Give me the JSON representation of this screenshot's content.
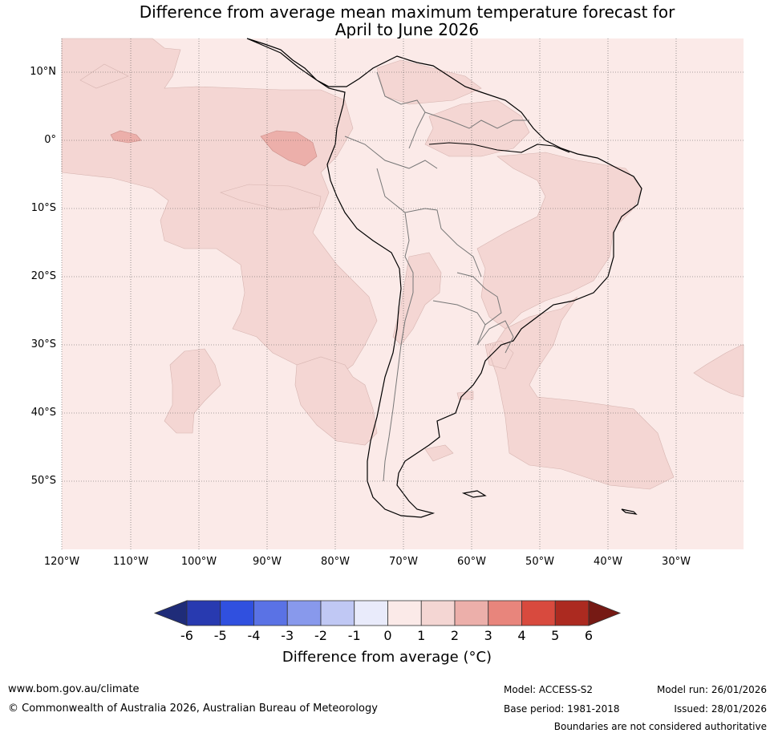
{
  "title": {
    "line1": "Difference from average mean maximum temperature forecast for",
    "line2": "April to June 2026"
  },
  "map": {
    "region": "South America and surrounding oceans",
    "lat_labels": [
      "10°N",
      "0°",
      "10°S",
      "20°S",
      "30°S",
      "40°S",
      "50°S"
    ],
    "lon_labels": [
      "120°W",
      "110°W",
      "100°W",
      "90°W",
      "80°W",
      "70°W",
      "60°W",
      "50°W",
      "40°W",
      "30°W"
    ],
    "fill_colors": {
      "bin_0_1": "#fbeae8",
      "bin_1_2": "#f4d6d3",
      "bin_2_3": "#ecafaa"
    }
  },
  "colorbar": {
    "ticks": [
      "-6",
      "-5",
      "-4",
      "-3",
      "-2",
      "-1",
      "0",
      "1",
      "2",
      "3",
      "4",
      "5",
      "6"
    ],
    "colors": [
      "#1f2c79",
      "#283ab0",
      "#3050df",
      "#5a72e5",
      "#8899ec",
      "#c0c8f4",
      "#e9ebfb",
      "#fbeae8",
      "#f4d6d3",
      "#ecafaa",
      "#e8857c",
      "#d84a3e",
      "#ac2a20",
      "#761a14"
    ],
    "label": "Difference from average (°C)"
  },
  "footer": {
    "website": "www.bom.gov.au/climate",
    "copyright": "© Commonwealth of Australia 2026, Australian Bureau of Meteorology",
    "model": "Model: ACCESS-S2",
    "base_period": "Base period: 1981-2018",
    "model_run": "Model run: 26/01/2026",
    "issued": "Issued: 28/01/2026",
    "disclaimer": "Boundaries are not considered authoritative"
  }
}
